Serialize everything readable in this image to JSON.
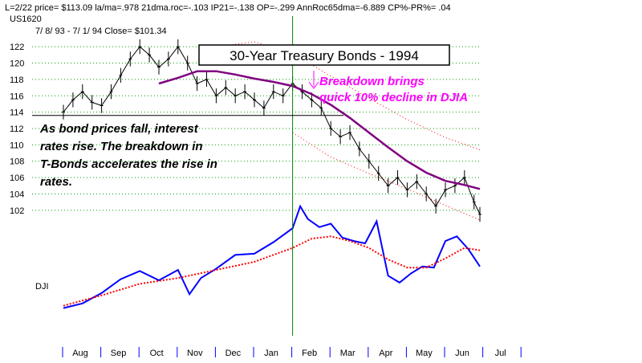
{
  "header": {
    "line1": "L=2/22  price= $113.09  la/ma=.978 21dma.roc=-.103 IP21=-.138 OP=-.299 AnnRoc65dma=-6.889 CP%-PR%=  .04",
    "symbol": "US1620",
    "range": "7/ 8/ 93 -  7/ 1/ 94    Close= $101.34"
  },
  "chart_data": {
    "type": "line",
    "title": "30-Year Treasury Bonds - 1994",
    "y_ticks": [
      102,
      104,
      106,
      108,
      110,
      112,
      114,
      116,
      118,
      120,
      122
    ],
    "ylim": [
      101,
      123
    ],
    "x_months": [
      "Aug",
      "Sep",
      "Oct",
      "Nov",
      "Dec",
      "Jan",
      "Feb",
      "Mar",
      "Apr",
      "May",
      "Jun",
      "Jul"
    ],
    "breakdown_level": 113.6,
    "breakdown_month": "Feb",
    "series": [
      {
        "name": "",
        "color": "#000000",
        "x": [
          0.0,
          0.25,
          0.5,
          0.75,
          1.0,
          1.25,
          1.5,
          1.75,
          2.0,
          2.25,
          2.5,
          2.75,
          3.0,
          3.25,
          3.5,
          3.75,
          4.0,
          4.25,
          4.5,
          4.75,
          5.0,
          5.25,
          5.5,
          5.75,
          6.0,
          6.25,
          6.5,
          6.75,
          7.0,
          7.25,
          7.5,
          7.75,
          8.0,
          8.25,
          8.5,
          8.75,
          9.0,
          9.25,
          9.5,
          9.75,
          10.0,
          10.25,
          10.5,
          10.75,
          11.0
        ],
        "values": [
          114.0,
          115.5,
          116.5,
          115.2,
          114.8,
          116.5,
          118.5,
          120.5,
          122.0,
          121.0,
          119.5,
          120.5,
          122.0,
          120.0,
          117.5,
          118.0,
          116.0,
          117.0,
          116.0,
          116.5,
          115.5,
          114.5,
          116.5,
          116.0,
          117.5,
          116.5,
          115.5,
          114.5,
          112.0,
          111.0,
          111.5,
          109.5,
          108.0,
          106.5,
          105.0,
          106.0,
          104.5,
          105.5,
          104.0,
          102.5,
          104.5,
          105.0,
          106.0,
          103.0,
          101.5
        ]
      },
      {
        "name": "",
        "color": "#800080",
        "x": [
          2.5,
          3.0,
          3.5,
          4.0,
          4.5,
          5.0,
          5.5,
          6.0,
          6.5,
          7.0,
          7.5,
          8.0,
          8.5,
          9.0,
          9.5,
          10.0,
          10.5,
          11.0
        ],
        "values": [
          117.5,
          118.2,
          119.0,
          119.0,
          118.6,
          118.1,
          117.7,
          117.2,
          116.2,
          114.9,
          113.3,
          111.5,
          109.7,
          108.0,
          106.6,
          105.6,
          105.1,
          104.6
        ]
      },
      {
        "name": "",
        "color": "#ff0000",
        "dashed": true,
        "x": [
          4.0,
          5.0,
          6.0,
          7.0,
          8.0,
          9.0,
          10.0,
          11.0
        ],
        "values": [
          122.0,
          122.6,
          121.2,
          118.4,
          115.7,
          113.1,
          110.9,
          109.4
        ]
      },
      {
        "name": "",
        "color": "#ff0000",
        "dashed": true,
        "x": [
          6.0,
          7.0,
          8.0,
          9.0,
          10.0,
          11.0
        ],
        "values": [
          111.5,
          108.5,
          106.5,
          104.6,
          102.6,
          100.8
        ]
      }
    ],
    "indicator": {
      "label": "DJI",
      "series": [
        {
          "name": "DJI",
          "color": "#0000ff",
          "x": [
            0.0,
            0.5,
            1.0,
            1.5,
            2.0,
            2.5,
            3.0,
            3.3,
            3.6,
            4.0,
            4.5,
            5.0,
            5.5,
            6.0,
            6.2,
            6.4,
            6.7,
            7.0,
            7.3,
            7.6,
            7.9,
            8.2,
            8.5,
            8.8,
            9.1,
            9.4,
            9.7,
            10.0,
            10.3,
            10.6,
            11.0
          ],
          "values": [
            10,
            14,
            23,
            35,
            42,
            34,
            43,
            22,
            36,
            44,
            56,
            57,
            67,
            79,
            98,
            87,
            80,
            83,
            71,
            68,
            66,
            85,
            38,
            32,
            40,
            46,
            45,
            68,
            72,
            61,
            46
          ]
        },
        {
          "name": "",
          "color": "#ff0000",
          "dashed": true,
          "x": [
            0.0,
            1.0,
            2.0,
            3.0,
            4.0,
            5.0,
            6.0,
            6.5,
            7.0,
            7.5,
            8.0,
            8.5,
            9.0,
            9.5,
            10.0,
            10.5,
            11.0
          ],
          "values": [
            12,
            21,
            31,
            36,
            43,
            50,
            62,
            70,
            72,
            68,
            62,
            52,
            45,
            45,
            53,
            62,
            60
          ]
        }
      ]
    }
  },
  "annotations": {
    "breakdown_lines": [
      "Breakdown brings",
      "quick 10% decline in DJIA"
    ],
    "explain_lines": [
      "As bond prices fall, interest",
      "rates rise.  The breakdown in",
      "T-Bonds accelerates the rise in",
      "rates."
    ]
  },
  "colors": {
    "price": "#000000",
    "moving_average": "#800080",
    "band": "#ff0000",
    "dji": "#0000ff",
    "grid": "#00a000",
    "axis_ticks": "#0000ff",
    "annotation": "#ff00ff"
  }
}
